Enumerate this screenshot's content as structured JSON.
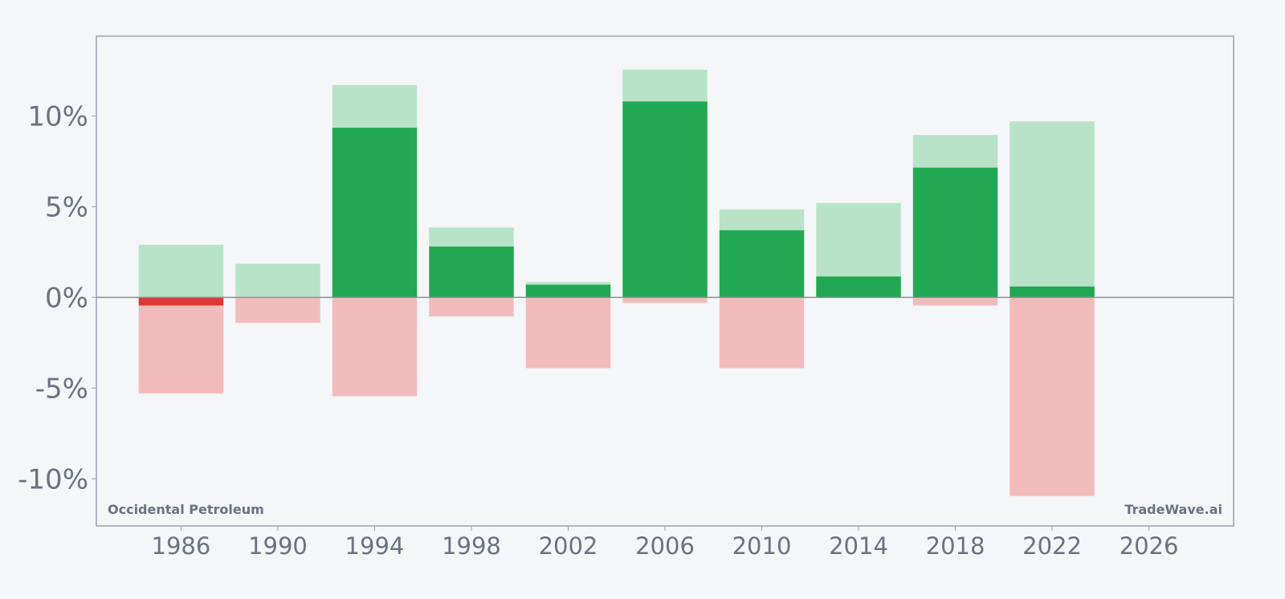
{
  "chart_data": {
    "type": "bar",
    "xlim": [
      1982.5,
      2029.5
    ],
    "ylim": [
      -12.6,
      14.4
    ],
    "x_ticks": [
      "1986",
      "1990",
      "1994",
      "1998",
      "2002",
      "2006",
      "2010",
      "2014",
      "2018",
      "2022",
      "2026"
    ],
    "y_ticks": [
      "-10%",
      "-5%",
      "0%",
      "5%",
      "10%"
    ],
    "y_tick_values": [
      -10,
      -5,
      0,
      5,
      10
    ],
    "grid": false,
    "annotations": {
      "bottom_left": "Occidental Petroleum",
      "bottom_right": "TradeWave.ai"
    },
    "bars": [
      {
        "x": 1986,
        "range_high": 2.9,
        "range_low": -5.3,
        "value": -0.45
      },
      {
        "x": 1990,
        "range_high": 1.85,
        "range_low": -1.4,
        "value": 0
      },
      {
        "x": 1994,
        "range_high": 11.7,
        "range_low": -5.45,
        "value": 9.35
      },
      {
        "x": 1998,
        "range_high": 3.85,
        "range_low": -1.05,
        "value": 2.8
      },
      {
        "x": 2002,
        "range_high": 0.85,
        "range_low": -3.9,
        "value": 0.7
      },
      {
        "x": 2006,
        "range_high": 12.55,
        "range_low": -0.3,
        "value": 10.8
      },
      {
        "x": 2010,
        "range_high": 4.85,
        "range_low": -3.9,
        "value": 3.7
      },
      {
        "x": 2014,
        "range_high": 5.2,
        "range_low": 0,
        "value": 1.15
      },
      {
        "x": 2018,
        "range_high": 8.95,
        "range_low": -0.45,
        "value": 7.15
      },
      {
        "x": 2022,
        "range_high": 9.7,
        "range_low": -10.95,
        "value": 0.6
      }
    ]
  },
  "colors": {
    "background": "#f4f6f8",
    "frame": "#9ca3af",
    "zero_line": "#8a909a",
    "tick_text": "#6b7280",
    "positive": "#22a853",
    "positive_light": "#b8e3c8",
    "negative": "#dc3838",
    "negative_light": "#f2bcbc"
  }
}
